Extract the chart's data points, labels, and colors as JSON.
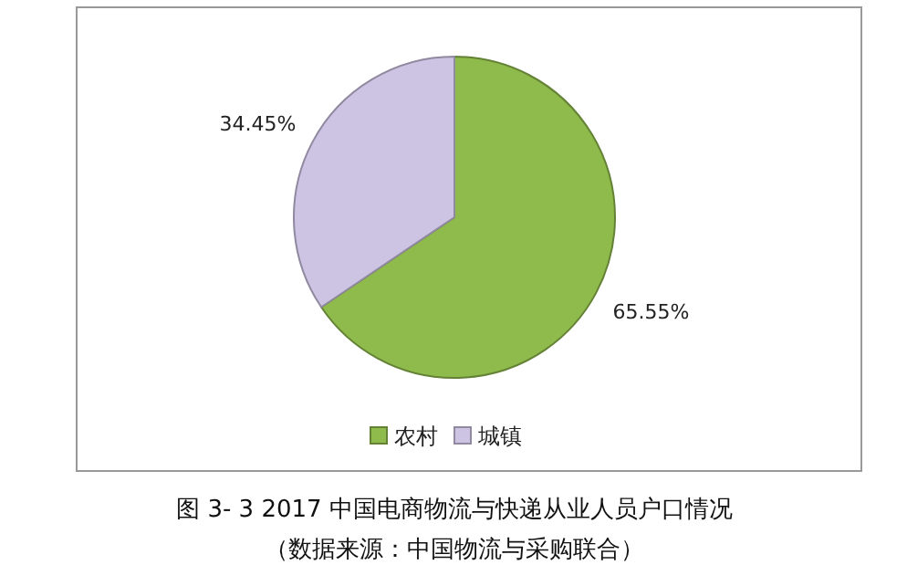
{
  "chart_data": {
    "type": "pie",
    "title": "图 3- 3   2017 中国电商物流与快递从业人员户口情况",
    "annotations": [
      "（数据来源：中国物流与采购联合）"
    ],
    "categories": [
      "农村",
      "城镇"
    ],
    "values": [
      65.55,
      34.45
    ],
    "colors": [
      "#8fba4c",
      "#cdc3e3"
    ],
    "value_labels": [
      "65.55%",
      "34.45%"
    ],
    "legend": "bottom"
  }
}
